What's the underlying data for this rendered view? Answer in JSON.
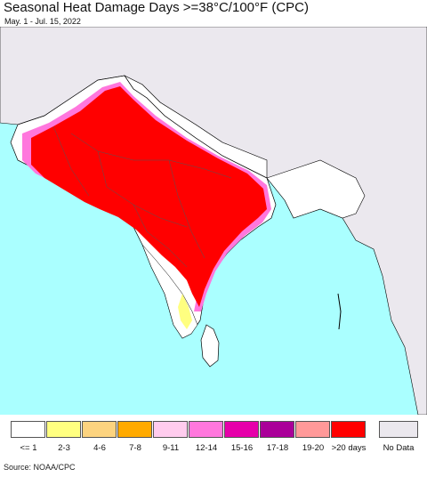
{
  "header": {
    "title": "Seasonal Heat Damage Days >=38°C/100°F (CPC)",
    "subtitle": "May. 1 - Jul. 15, 2022"
  },
  "legend": {
    "items": [
      {
        "label": "<= 1",
        "color": "#ffffff"
      },
      {
        "label": "2-3",
        "color": "#ffff80"
      },
      {
        "label": "4-6",
        "color": "#fcd37f"
      },
      {
        "label": "7-8",
        "color": "#ffaa00"
      },
      {
        "label": "9-11",
        "color": "#ffccee"
      },
      {
        "label": "12-14",
        "color": "#ff77dd"
      },
      {
        "label": "15-16",
        "color": "#e600aa"
      },
      {
        "label": "17-18",
        "color": "#aa0099"
      },
      {
        "label": "19-20",
        "color": "#ff9999"
      },
      {
        "label": ">20 days",
        "color": "#ff0000"
      }
    ],
    "nodata": {
      "label": "No Data",
      "color": "#ebe8ee"
    }
  },
  "footer": {
    "source": "Source: NOAA/CPC"
  },
  "colors": {
    "ocean": "#aaffff",
    "land": "#ffffff",
    "outside": "#ebe8ee",
    "border": "#000000"
  }
}
